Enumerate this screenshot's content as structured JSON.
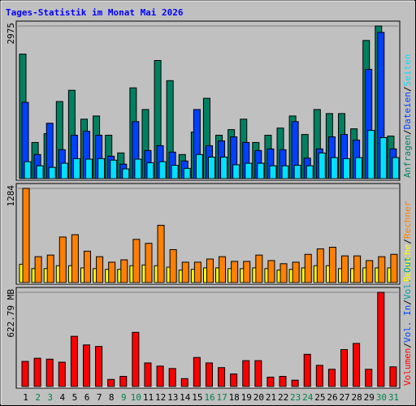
{
  "chart_data": [
    {
      "type": "bar",
      "title": "Tages-Statistik im Monat Mai 2026",
      "ylim": [
        0,
        2975
      ],
      "yticks": [
        2975
      ],
      "separator": "/",
      "series": [
        {
          "name": "Anfragen",
          "color": "#008060",
          "values": [
            2427,
            705,
            877,
            1503,
            1722,
            1159,
            1221,
            846,
            501,
            1769,
            1347,
            2302,
            1910,
            470,
            908,
            1566,
            846,
            955,
            1159,
            705,
            846,
            986,
            1221,
            861,
            1347,
            1268,
            1268,
            971,
            2693,
            2975,
            830
          ]
        },
        {
          "name": "Dateien",
          "color": "#0040ff",
          "values": [
            1487,
            470,
            1080,
            564,
            846,
            924,
            846,
            438,
            282,
            1112,
            548,
            642,
            517,
            344,
            1347,
            642,
            736,
            814,
            705,
            548,
            580,
            564,
            1112,
            400,
            580,
            814,
            861,
            752,
            2130,
            2850,
            580
          ]
        },
        {
          "name": "Seiten",
          "color": "#00e0ff",
          "values": [
            330,
            250,
            220,
            300,
            390,
            380,
            390,
            360,
            190,
            380,
            310,
            330,
            260,
            200,
            470,
            420,
            420,
            270,
            300,
            300,
            250,
            250,
            260,
            250,
            500,
            410,
            390,
            410,
            940,
            800,
            410
          ]
        }
      ]
    },
    {
      "type": "bar",
      "ylim": [
        0,
        1284
      ],
      "yticks": [
        1284
      ],
      "separator": "/",
      "series": [
        {
          "name": "Besuche",
          "color": "#ffff00",
          "values": [
            250,
            190,
            190,
            230,
            230,
            200,
            190,
            180,
            180,
            230,
            240,
            230,
            210,
            170,
            180,
            200,
            200,
            190,
            190,
            200,
            190,
            170,
            180,
            200,
            230,
            230,
            190,
            190,
            200,
            200,
            200
          ]
        },
        {
          "name": "Rechner",
          "color": "#ff8000",
          "values": [
            1284,
            353,
            375,
            621,
            653,
            428,
            353,
            278,
            310,
            589,
            535,
            781,
            449,
            278,
            278,
            321,
            353,
            289,
            289,
            375,
            300,
            257,
            278,
            385,
            460,
            482,
            364,
            364,
            300,
            353,
            385
          ]
        }
      ]
    },
    {
      "type": "bar",
      "ylim": [
        0,
        622.79
      ],
      "yticks": [
        {
          "value": 622.79,
          "label": "622.79 MB"
        }
      ],
      "separator": "/",
      "categories": [
        "1",
        "2",
        "3",
        "4",
        "5",
        "6",
        "7",
        "8",
        "9",
        "10",
        "11",
        "12",
        "13",
        "14",
        "15",
        "16",
        "17",
        "18",
        "19",
        "20",
        "21",
        "22",
        "23",
        "24",
        "25",
        "26",
        "27",
        "28",
        "29",
        "30",
        "31"
      ],
      "weekend_indices": [
        1,
        2,
        8,
        9,
        15,
        16,
        22,
        23,
        29,
        30
      ],
      "weekend_color": "#00804a",
      "series": [
        {
          "name": "Volumen",
          "color": "#ff0000",
          "values": [
            166,
            187,
            181,
            161,
            332,
            275,
            265,
            47,
            67,
            358,
            156,
            135,
            119,
            52,
            192,
            156,
            125,
            83,
            171,
            171,
            62,
            67,
            42,
            213,
            140,
            114,
            244,
            285,
            114,
            622.79,
            130
          ]
        },
        {
          "name": "Vol. In",
          "color": "#0040ff"
        },
        {
          "name": "Vol. Out",
          "color": "#00a0a0"
        }
      ]
    }
  ]
}
